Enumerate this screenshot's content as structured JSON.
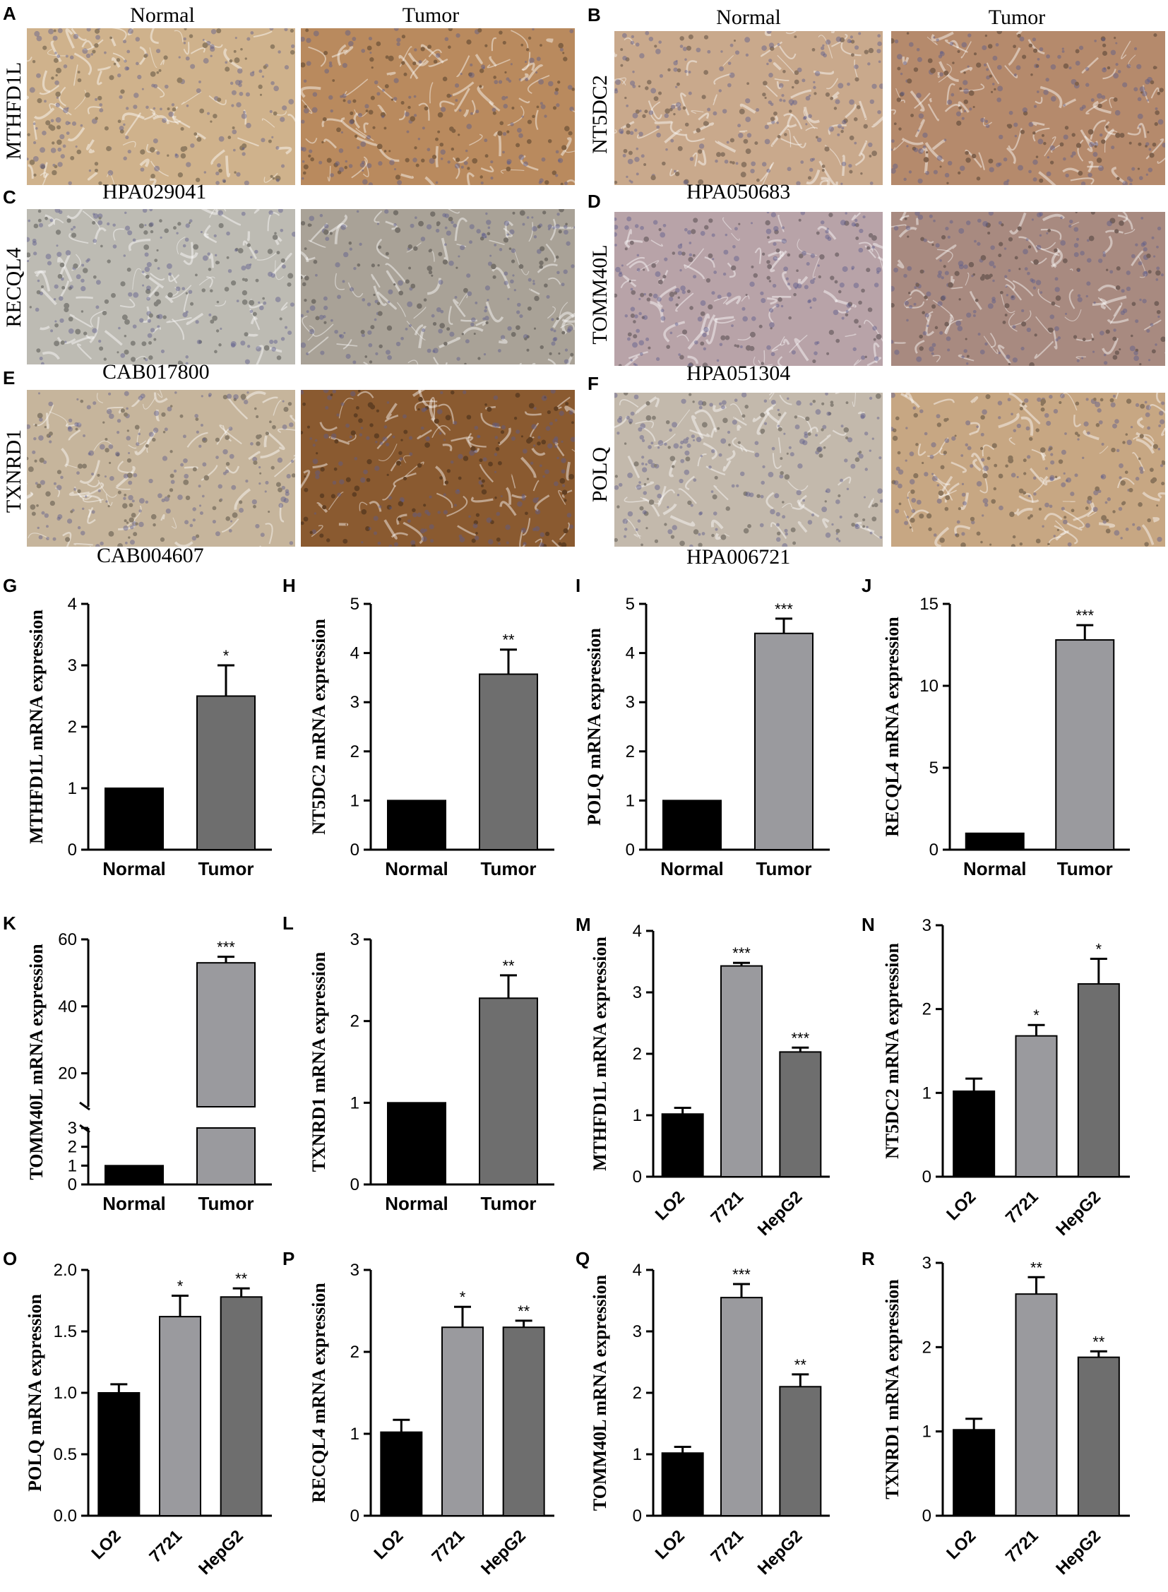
{
  "ihc": {
    "column_headers": [
      "Normal",
      "Tumor"
    ],
    "panels": [
      {
        "letter": "A",
        "gene": "MTHFD1L",
        "antibody": "HPA029041",
        "normal_color": "#cfb28c",
        "tumor_color": "#b98a5e"
      },
      {
        "letter": "B",
        "gene": "NT5DC2",
        "antibody": "HPA050683",
        "normal_color": "#c9a98c",
        "tumor_color": "#b58a6c"
      },
      {
        "letter": "C",
        "gene": "RECQL4",
        "antibody": "CAB017800",
        "normal_color": "#bdbbb3",
        "tumor_color": "#a9a297"
      },
      {
        "letter": "D",
        "gene": "TOMM40L",
        "antibody": "HPA051304",
        "normal_color": "#b8a3a8",
        "tumor_color": "#a88a80"
      },
      {
        "letter": "E",
        "gene": "TXNRD1",
        "antibody": "CAB004607",
        "normal_color": "#c6b59c",
        "tumor_color": "#8a5a30"
      },
      {
        "letter": "F",
        "gene": "POLQ",
        "antibody": "HPA006721",
        "normal_color": "#c3b9ac",
        "tumor_color": "#c7a783"
      }
    ]
  },
  "chart_data": [
    {
      "id": "G",
      "type": "bar",
      "ylabel": "MTHFD1L mRNA expression",
      "categories": [
        "Normal",
        "Tumor"
      ],
      "values": [
        1,
        2.5
      ],
      "errors": [
        0,
        0.5
      ],
      "sig": [
        "",
        "*"
      ],
      "colors": [
        "#000000",
        "#6e6e6e"
      ],
      "ylim": [
        0,
        4
      ],
      "yticks": [
        0,
        1,
        2,
        3,
        4
      ]
    },
    {
      "id": "H",
      "type": "bar",
      "ylabel": "NT5DC2 mRNA expression",
      "categories": [
        "Normal",
        "Tumor"
      ],
      "values": [
        1,
        3.57
      ],
      "errors": [
        0,
        0.5
      ],
      "sig": [
        "",
        "**"
      ],
      "colors": [
        "#000000",
        "#6e6e6e"
      ],
      "ylim": [
        0,
        5
      ],
      "yticks": [
        0,
        1,
        2,
        3,
        4,
        5
      ]
    },
    {
      "id": "I",
      "type": "bar",
      "ylabel": "POLQ mRNA expression",
      "categories": [
        "Normal",
        "Tumor"
      ],
      "values": [
        1,
        4.4
      ],
      "errors": [
        0,
        0.3
      ],
      "sig": [
        "",
        "***"
      ],
      "colors": [
        "#000000",
        "#9a9a9e"
      ],
      "ylim": [
        0,
        5
      ],
      "yticks": [
        0,
        1,
        2,
        3,
        4,
        5
      ]
    },
    {
      "id": "J",
      "type": "bar",
      "ylabel": "RECQL4 mRNA expression",
      "categories": [
        "Normal",
        "Tumor"
      ],
      "values": [
        1,
        12.8
      ],
      "errors": [
        0,
        0.9
      ],
      "sig": [
        "",
        "***"
      ],
      "colors": [
        "#000000",
        "#9a9a9e"
      ],
      "ylim": [
        0,
        15
      ],
      "yticks": [
        0,
        5,
        10,
        15
      ]
    },
    {
      "id": "K",
      "type": "bar",
      "ylabel": "TOMM40L mRNA expression",
      "categories": [
        "Normal",
        "Tumor"
      ],
      "values": [
        1,
        53
      ],
      "errors": [
        0,
        1.8
      ],
      "sig": [
        "",
        "***"
      ],
      "colors": [
        "#000000",
        "#9a9a9e"
      ],
      "broken_axis": true,
      "lower_ticks": [
        0,
        1,
        2,
        3
      ],
      "upper_ticks": [
        20,
        40,
        60
      ]
    },
    {
      "id": "L",
      "type": "bar",
      "ylabel": "TXNRD1 mRNA expression",
      "categories": [
        "Normal",
        "Tumor"
      ],
      "values": [
        1,
        2.28
      ],
      "errors": [
        0,
        0.28
      ],
      "sig": [
        "",
        "**"
      ],
      "colors": [
        "#000000",
        "#6e6e6e"
      ],
      "ylim": [
        0,
        3
      ],
      "yticks": [
        0,
        1,
        2,
        3
      ]
    },
    {
      "id": "M",
      "type": "bar",
      "ylabel": "MTHFD1L mRNA expression",
      "categories": [
        "LO2",
        "7721",
        "HepG2"
      ],
      "values": [
        1.02,
        3.43,
        2.03
      ],
      "errors": [
        0.1,
        0.05,
        0.07
      ],
      "sig": [
        "",
        "***",
        "***"
      ],
      "colors": [
        "#000000",
        "#9a9a9e",
        "#6e6e6e"
      ],
      "ylim": [
        0,
        4
      ],
      "yticks": [
        0,
        1,
        2,
        3,
        4
      ]
    },
    {
      "id": "N",
      "type": "bar",
      "ylabel": "NT5DC2 mRNA expression",
      "categories": [
        "LO2",
        "7721",
        "HepG2"
      ],
      "values": [
        1.02,
        1.68,
        2.3
      ],
      "errors": [
        0.15,
        0.13,
        0.3
      ],
      "sig": [
        "",
        "*",
        "*"
      ],
      "colors": [
        "#000000",
        "#9a9a9e",
        "#6e6e6e"
      ],
      "ylim": [
        0,
        3
      ],
      "yticks": [
        0,
        1,
        2,
        3
      ]
    },
    {
      "id": "O",
      "type": "bar",
      "ylabel": "POLQ mRNA expression",
      "categories": [
        "LO2",
        "7721",
        "HepG2"
      ],
      "values": [
        1.0,
        1.62,
        1.78
      ],
      "errors": [
        0.07,
        0.17,
        0.07
      ],
      "sig": [
        "",
        "*",
        "**"
      ],
      "colors": [
        "#000000",
        "#9a9a9e",
        "#6e6e6e"
      ],
      "ylim": [
        0,
        2
      ],
      "yticks": [
        0.0,
        0.5,
        1.0,
        1.5,
        2.0
      ],
      "decimals": 1
    },
    {
      "id": "P",
      "type": "bar",
      "ylabel": "RECQL4 mRNA expression",
      "categories": [
        "LO2",
        "7721",
        "HepG2"
      ],
      "values": [
        1.02,
        2.3,
        2.3
      ],
      "errors": [
        0.15,
        0.25,
        0.08
      ],
      "sig": [
        "",
        "*",
        "**"
      ],
      "colors": [
        "#000000",
        "#9a9a9e",
        "#6e6e6e"
      ],
      "ylim": [
        0,
        3
      ],
      "yticks": [
        0,
        1,
        2,
        3
      ]
    },
    {
      "id": "Q",
      "type": "bar",
      "ylabel": "TOMM40L mRNA expression",
      "categories": [
        "LO2",
        "7721",
        "HepG2"
      ],
      "values": [
        1.02,
        3.55,
        2.1
      ],
      "errors": [
        0.1,
        0.22,
        0.2
      ],
      "sig": [
        "",
        "***",
        "**"
      ],
      "colors": [
        "#000000",
        "#9a9a9e",
        "#6e6e6e"
      ],
      "ylim": [
        0,
        4
      ],
      "yticks": [
        0,
        1,
        2,
        3,
        4
      ]
    },
    {
      "id": "R",
      "type": "bar",
      "ylabel": "TXNRD1 mRNA expression",
      "categories": [
        "LO2",
        "7721",
        "HepG2"
      ],
      "values": [
        1.02,
        2.63,
        1.88
      ],
      "errors": [
        0.13,
        0.2,
        0.07
      ],
      "sig": [
        "",
        "**",
        "**"
      ],
      "colors": [
        "#000000",
        "#9a9a9e",
        "#6e6e6e"
      ],
      "ylim": [
        0,
        3
      ],
      "yticks": [
        0,
        1,
        2,
        3
      ]
    }
  ]
}
